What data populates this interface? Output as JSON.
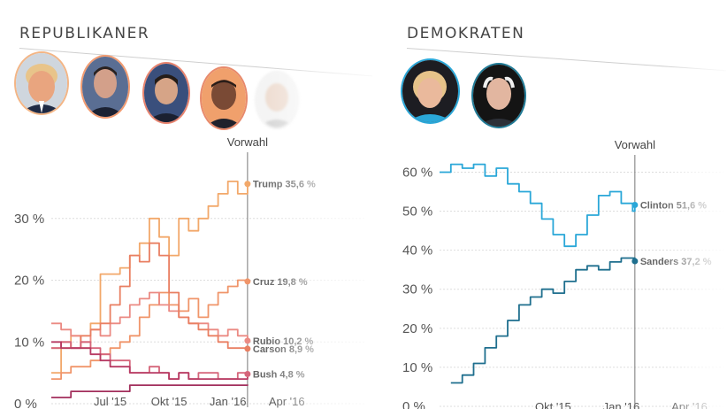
{
  "republicans": {
    "title": "REPUBLIKANER",
    "candidates": [
      {
        "name": "Trump",
        "ring": "#f3b585"
      },
      {
        "name": "Cruz",
        "ring": "#f29b70"
      },
      {
        "name": "Rubio",
        "ring": "#e8836e"
      },
      {
        "name": "Carson",
        "ring": "#e88a6c"
      },
      {
        "name": "Bush",
        "ring": "#e8e8e8"
      }
    ]
  },
  "democrats": {
    "title": "DEMOKRATEN",
    "candidates": [
      {
        "name": "Clinton",
        "ring": "#2aa7d8"
      },
      {
        "name": "Sanders",
        "ring": "#1f7a96"
      }
    ]
  },
  "chart_data": [
    {
      "type": "line",
      "title": "REPUBLIKANER",
      "marker_label": "Vorwahl",
      "ylim": [
        0,
        38
      ],
      "yticks": [
        0,
        10,
        20,
        30
      ],
      "ytick_labels": [
        "0 %",
        "10 %",
        "20 %",
        "30 %"
      ],
      "xlim": [
        0,
        16
      ],
      "xticks": [
        3,
        6,
        9,
        12
      ],
      "xtick_labels": [
        "Jul '15",
        "Okt '15",
        "Jan '16",
        "Apr '16"
      ],
      "marker_x": 10,
      "x": [
        0,
        0.5,
        1,
        1.5,
        2,
        2.5,
        3,
        3.5,
        4,
        4.5,
        5,
        5.5,
        6,
        6.5,
        7,
        7.5,
        8,
        8.5,
        9,
        9.5,
        10
      ],
      "series": [
        {
          "name": "Trump",
          "label": "Trump 35,6 %",
          "color": "#f2a86a",
          "values": [
            5,
            9,
            11,
            9,
            13,
            21,
            21,
            22,
            24,
            26,
            30,
            27,
            24,
            30,
            28,
            30,
            32,
            34,
            36,
            34,
            35.6
          ]
        },
        {
          "name": "Cruz",
          "label": "Cruz 19,8 %",
          "color": "#f0956a",
          "values": [
            4,
            5,
            6,
            6,
            7,
            8,
            9,
            10,
            11,
            14,
            16,
            18,
            16,
            15,
            17,
            14,
            16,
            18,
            19,
            20,
            19.8
          ]
        },
        {
          "name": "Rubio",
          "label": "Rubio 10,2 %",
          "color": "#eb8a83",
          "values": [
            13,
            12,
            11,
            10,
            12,
            11,
            13,
            14,
            16,
            17,
            18,
            16,
            15,
            14,
            13,
            13,
            12,
            11,
            12,
            11,
            10.2
          ]
        },
        {
          "name": "Carson",
          "label": "Carson 8,9 %",
          "color": "#e97f62",
          "values": [
            9,
            10,
            9,
            11,
            12,
            13,
            16,
            19,
            24,
            23,
            26,
            24,
            18,
            14,
            13,
            12,
            11,
            10,
            9,
            9,
            8.9
          ]
        },
        {
          "name": "Bush",
          "label": "Bush 4,8 %",
          "color": "#d5657a",
          "values": [
            9,
            10,
            9,
            10,
            9,
            8,
            7,
            7,
            5,
            5,
            6,
            5,
            4,
            5,
            4,
            5,
            5,
            4,
            4,
            5,
            4.8
          ]
        },
        {
          "name": "",
          "label": "",
          "color": "#b73a63",
          "values": [
            10,
            9,
            9,
            9,
            8,
            7,
            6,
            6,
            5,
            5,
            5,
            5,
            4,
            5,
            4,
            4,
            4,
            4,
            4,
            4,
            4.3
          ]
        },
        {
          "name": "",
          "label": "",
          "color": "#a22f5c",
          "values": [
            1,
            1,
            2,
            2,
            2,
            2,
            2,
            2,
            3,
            3,
            3,
            3,
            3,
            3,
            3,
            3,
            3,
            3,
            3,
            3,
            3.1
          ]
        }
      ]
    },
    {
      "type": "line",
      "title": "DEMOKRATEN",
      "marker_label": "Vorwahl",
      "ylim": [
        0,
        66
      ],
      "yticks": [
        0,
        10,
        20,
        30,
        40,
        50,
        60
      ],
      "ytick_labels": [
        "0 %",
        "10 %",
        "20 %",
        "30 %",
        "40 %",
        "50 %",
        "60 %"
      ],
      "xlim": [
        0,
        12.5
      ],
      "xticks": [
        5,
        8,
        11
      ],
      "xtick_labels": [
        "Okt '15",
        "Jan '16",
        "Apr '16"
      ],
      "marker_x": 8.6,
      "x": [
        0,
        0.5,
        1,
        1.5,
        2,
        2.5,
        3,
        3.5,
        4,
        4.5,
        5,
        5.5,
        6,
        6.5,
        7,
        7.5,
        8,
        8.5,
        8.6
      ],
      "series": [
        {
          "name": "Clinton",
          "label": "Clinton 51,6 %",
          "color": "#2aa7d8",
          "values": [
            60,
            62,
            61,
            62,
            59,
            61,
            57,
            55,
            52,
            48,
            44,
            41,
            44,
            49,
            54,
            55,
            52,
            50,
            51.6
          ]
        },
        {
          "name": "Sanders",
          "label": "Sanders 37,2 %",
          "color": "#1f6f8e",
          "values": [
            null,
            6,
            8,
            11,
            15,
            18,
            22,
            26,
            28,
            30,
            29,
            32,
            35,
            36,
            35,
            37,
            38,
            38,
            37.2
          ]
        }
      ]
    }
  ]
}
